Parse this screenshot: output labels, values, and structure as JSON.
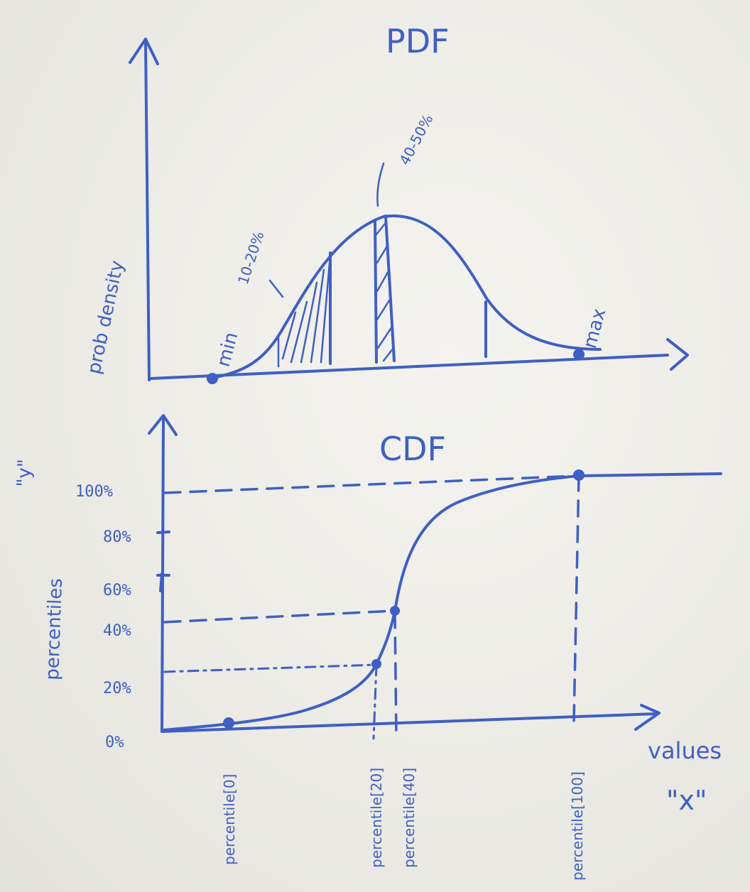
{
  "pdf": {
    "title": "PDF",
    "y_axis_label": "prob density",
    "annotation_10_20": "10-20%",
    "annotation_40_50": "40-50%",
    "min_label": "min",
    "max_label": "max"
  },
  "cdf": {
    "title": "CDF",
    "y_axis_label": "percentiles",
    "y_axis_var": "\"y\"",
    "x_axis_label": "values",
    "x_axis_var": "\"x\"",
    "y_ticks": [
      "100%",
      "80%",
      "60%",
      "40%",
      "20%",
      "0%"
    ],
    "x_ticks": [
      "percentile[0]",
      "percentile[20]",
      "percentile[40]",
      "percentile[100]"
    ]
  }
}
